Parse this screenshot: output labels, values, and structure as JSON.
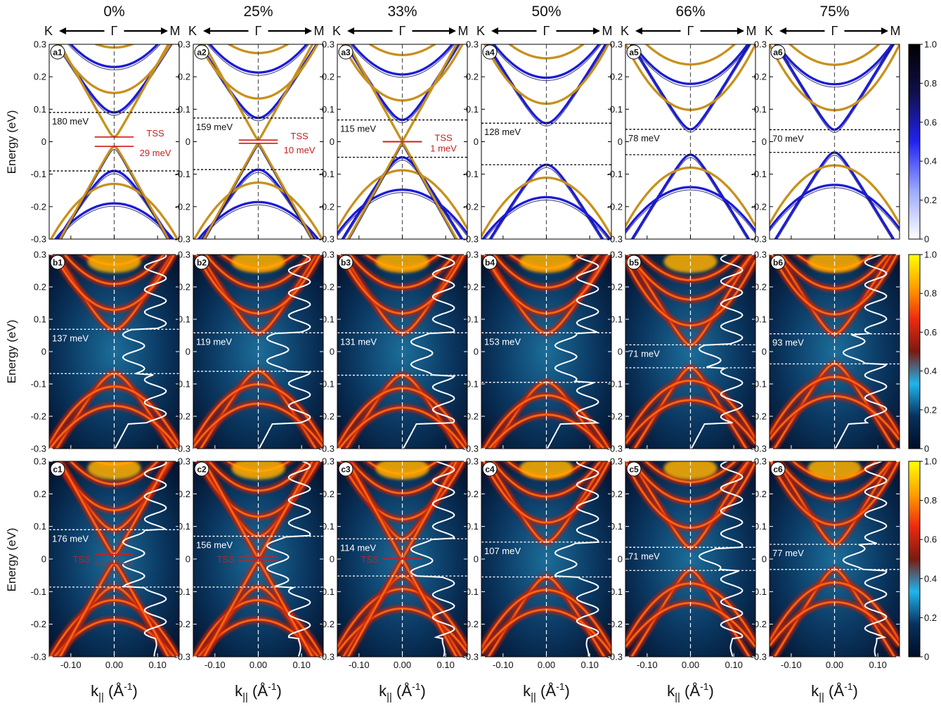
{
  "figure": {
    "columns": [
      "0%",
      "25%",
      "33%",
      "50%",
      "66%",
      "75%"
    ],
    "direction": {
      "left": "K",
      "center": "Γ",
      "right": "M"
    },
    "ylabel": "Energy (eV)",
    "xlabel_main": "k",
    "xlabel_sub": "||",
    "xlabel_unit_open": " (Å",
    "xlabel_unit_sup": "-1",
    "xlabel_unit_close": ")",
    "row_tag_letters": [
      "a",
      "b",
      "c"
    ],
    "tss_label": "TSS"
  },
  "colorbars": {
    "row_a": {
      "colors": [
        "#ffffff",
        "#9aa8ff",
        "#2222ee",
        "#10104a",
        "#000000"
      ],
      "ticks": [
        "0",
        "0.2",
        "0.4",
        "0.6",
        "0.8",
        "1.0"
      ]
    },
    "row_bc": {
      "colors": [
        "#000d26",
        "#08315c",
        "#1fb4ec",
        "#7a1a10",
        "#ee2a10",
        "#ffa000",
        "#ffff00"
      ],
      "ticks": [
        "0",
        "0.2",
        "0.4",
        "0.6",
        "0.8",
        "1.0"
      ]
    }
  },
  "chart_data": [
    {
      "type": "band-structure",
      "row": "a",
      "xlim": [
        -0.15,
        0.15
      ],
      "ylim": [
        -0.3,
        0.3
      ],
      "xticks": [
        "-0.10",
        "0.00",
        "0.10"
      ],
      "yticks": [
        "-0.3",
        "-0.2",
        "-0.1",
        "0",
        "0.1",
        "0.2",
        "0.3"
      ],
      "panels": [
        {
          "tag": "a1",
          "gap_label": "180 meV",
          "gap_top": 0.09,
          "gap_bottom": -0.09,
          "tss_gap_label": "29 meV",
          "tss_top": 0.0145,
          "tss_bottom": -0.0145
        },
        {
          "tag": "a2",
          "gap_label": "159 meV",
          "gap_top": 0.073,
          "gap_bottom": -0.086,
          "tss_gap_label": "10 meV",
          "tss_top": 0.005,
          "tss_bottom": -0.005
        },
        {
          "tag": "a3",
          "gap_label": "115 meV",
          "gap_top": 0.067,
          "gap_bottom": -0.048,
          "tss_gap_label": "1 meV",
          "tss_top": 0.0005,
          "tss_bottom": -0.0005
        },
        {
          "tag": "a4",
          "gap_label": "128 meV",
          "gap_top": 0.057,
          "gap_bottom": -0.071
        },
        {
          "tag": "a5",
          "gap_label": "78 meV",
          "gap_top": 0.038,
          "gap_bottom": -0.04
        },
        {
          "tag": "a6",
          "gap_label": "70 meV",
          "gap_top": 0.037,
          "gap_bottom": -0.033
        }
      ]
    },
    {
      "type": "heatmap",
      "row": "b",
      "xlim": [
        -0.15,
        0.15
      ],
      "ylim": [
        -0.3,
        0.3
      ],
      "xticks": [
        "-0.10",
        "0.00",
        "0.10"
      ],
      "yticks": [
        "-0.3",
        "-0.2",
        "-0.1",
        "0",
        "0.1",
        "0.2",
        "0.3"
      ],
      "panels": [
        {
          "tag": "b1",
          "gap_label": "137 meV",
          "gap_top": 0.069,
          "gap_bottom": -0.068
        },
        {
          "tag": "b2",
          "gap_label": "119 meV",
          "gap_top": 0.058,
          "gap_bottom": -0.061
        },
        {
          "tag": "b3",
          "gap_label": "131 meV",
          "gap_top": 0.058,
          "gap_bottom": -0.073
        },
        {
          "tag": "b4",
          "gap_label": "153 meV",
          "gap_top": 0.058,
          "gap_bottom": -0.095
        },
        {
          "tag": "b5",
          "gap_label": "71 meV",
          "gap_top": 0.021,
          "gap_bottom": -0.05
        },
        {
          "tag": "b6",
          "gap_label": "93 meV",
          "gap_top": 0.055,
          "gap_bottom": -0.038
        }
      ]
    },
    {
      "type": "heatmap",
      "row": "c",
      "xlim": [
        -0.15,
        0.15
      ],
      "ylim": [
        -0.3,
        0.3
      ],
      "xticks": [
        "-0.10",
        "0.00",
        "0.10"
      ],
      "yticks": [
        "-0.3",
        "-0.2",
        "-0.1",
        "0",
        "0.1",
        "0.2",
        "0.3"
      ],
      "panels": [
        {
          "tag": "c1",
          "gap_label": "176 meV",
          "gap_top": 0.09,
          "gap_bottom": -0.086,
          "tss_top": 0.014,
          "tss_bottom": -0.014
        },
        {
          "tag": "c2",
          "gap_label": "156 meV",
          "gap_top": 0.07,
          "gap_bottom": -0.086,
          "tss_top": 0.006,
          "tss_bottom": -0.006
        },
        {
          "tag": "c3",
          "gap_label": "114 meV",
          "gap_top": 0.062,
          "gap_bottom": -0.052,
          "tss_top": 0.0005,
          "tss_bottom": -0.0005
        },
        {
          "tag": "c4",
          "gap_label": "107 meV",
          "gap_top": 0.052,
          "gap_bottom": -0.055
        },
        {
          "tag": "c5",
          "gap_label": "71 meV",
          "gap_top": 0.036,
          "gap_bottom": -0.035
        },
        {
          "tag": "c6",
          "gap_label": "77 meV",
          "gap_top": 0.045,
          "gap_bottom": -0.032
        }
      ]
    }
  ]
}
